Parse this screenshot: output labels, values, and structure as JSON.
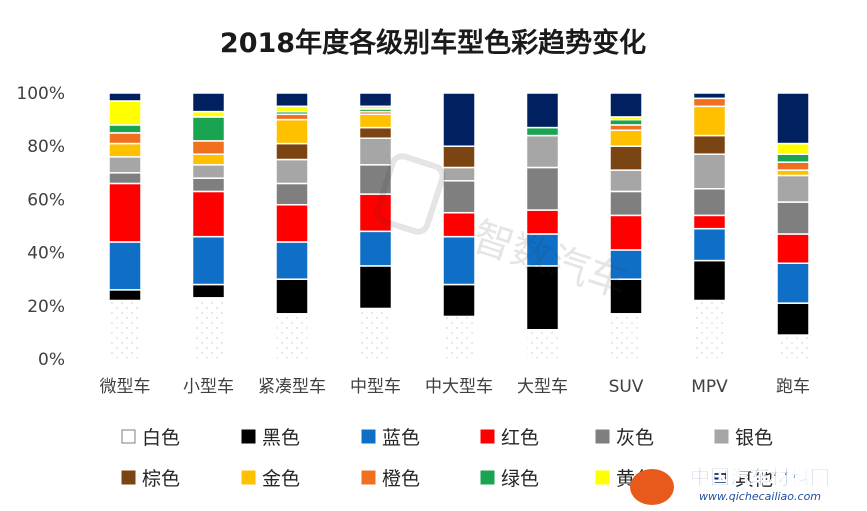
{
  "chart_data": {
    "type": "bar",
    "stacked": true,
    "title": "2018年度各级别车型色彩趋势变化",
    "categories": [
      "微型车",
      "小型车",
      "紧凑型车",
      "中型车",
      "中大型车",
      "大型车",
      "SUV",
      "MPV",
      "跑车"
    ],
    "ylim": [
      0,
      100
    ],
    "y_ticks": [
      "0%",
      "20%",
      "40%",
      "60%",
      "80%",
      "100%"
    ],
    "grid": false,
    "legend_position": "bottom",
    "series": [
      {
        "name": "白色",
        "color": "#ffffff",
        "values": [
          22,
          23,
          17,
          19,
          16,
          11,
          17,
          22,
          9
        ]
      },
      {
        "name": "黑色",
        "color": "#000000",
        "values": [
          4,
          5,
          13,
          16,
          12,
          24,
          13,
          15,
          12
        ]
      },
      {
        "name": "蓝色",
        "color": "#0f6fc6",
        "values": [
          18,
          18,
          14,
          13,
          18,
          12,
          11,
          12,
          15
        ]
      },
      {
        "name": "红色",
        "color": "#ff0000",
        "values": [
          22,
          17,
          14,
          14,
          9,
          9,
          13,
          5,
          11
        ]
      },
      {
        "name": "灰色",
        "color": "#7f7f7f",
        "values": [
          4,
          5,
          8,
          11,
          12,
          16,
          9,
          10,
          12
        ]
      },
      {
        "name": "银色",
        "color": "#a6a6a6",
        "values": [
          6,
          5,
          9,
          10,
          5,
          12,
          8,
          13,
          10
        ]
      },
      {
        "name": "棕色",
        "color": "#7b4513",
        "values": [
          0,
          0,
          6,
          4,
          8,
          0,
          9,
          7,
          0
        ]
      },
      {
        "name": "金色",
        "color": "#ffc000",
        "values": [
          5,
          4,
          9,
          5,
          0,
          0,
          6,
          11,
          2
        ]
      },
      {
        "name": "橙色",
        "color": "#f07020",
        "values": [
          4,
          5,
          2,
          1,
          0,
          0,
          2,
          3,
          3
        ]
      },
      {
        "name": "绿色",
        "color": "#1aa350",
        "values": [
          3,
          9,
          1,
          1,
          0,
          3,
          2,
          0,
          3
        ]
      },
      {
        "name": "黄色",
        "color": "#ffff00",
        "values": [
          9,
          2,
          2,
          1,
          0,
          0,
          1,
          0,
          4
        ]
      },
      {
        "name": "其他",
        "color": "#002060",
        "values": [
          3,
          7,
          5,
          5,
          20,
          13,
          9,
          2,
          19
        ]
      }
    ]
  },
  "watermark": {
    "logo_text": "智数汽车",
    "site_text": "中国汽车材料网",
    "site_url": "www.qichecailiao.com"
  }
}
